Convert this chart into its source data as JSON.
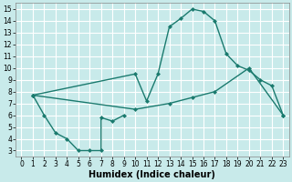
{
  "bg_color": "#c8eaea",
  "grid_color": "#ffffff",
  "line_color": "#1a7a6e",
  "line_width": 1.0,
  "marker": "D",
  "marker_size": 2.0,
  "xlabel": "Humidex (Indice chaleur)",
  "xlabel_fontsize": 7.0,
  "tick_fontsize": 5.5,
  "xlim": [
    -0.5,
    23.5
  ],
  "ylim": [
    2.5,
    15.5
  ],
  "xticks": [
    0,
    1,
    2,
    3,
    4,
    5,
    6,
    7,
    8,
    9,
    10,
    11,
    12,
    13,
    14,
    15,
    16,
    17,
    18,
    19,
    20,
    21,
    22,
    23
  ],
  "yticks": [
    3,
    4,
    5,
    6,
    7,
    8,
    9,
    10,
    11,
    12,
    13,
    14,
    15
  ],
  "line1_x": [
    1,
    10,
    11,
    12,
    13,
    14,
    15,
    16,
    17,
    18,
    19,
    20,
    21,
    22,
    23
  ],
  "line1_y": [
    7.7,
    9.5,
    7.2,
    9.5,
    13.5,
    14.2,
    15.0,
    14.8,
    14.0,
    11.2,
    10.2,
    9.8,
    9.0,
    8.5,
    6.0
  ],
  "line2_x": [
    1,
    10,
    13,
    15,
    17,
    20,
    23
  ],
  "line2_y": [
    7.7,
    6.5,
    7.0,
    7.5,
    8.0,
    10.0,
    6.0
  ],
  "line3_x": [
    1,
    2,
    3,
    4,
    5,
    6,
    7,
    7,
    8,
    9
  ],
  "line3_y": [
    7.7,
    6.0,
    4.5,
    4.0,
    3.0,
    3.0,
    3.0,
    5.8,
    5.5,
    6.0
  ]
}
